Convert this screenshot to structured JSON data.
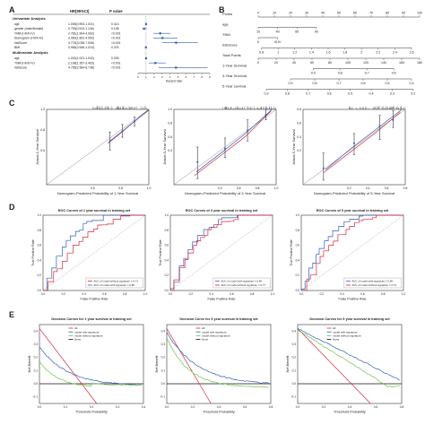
{
  "panels": {
    "A": "A",
    "B": "B",
    "C": "C",
    "D": "D",
    "E": "E"
  },
  "panelA": {
    "header": {
      "hr": "HR(95%CI)",
      "p": "P value"
    },
    "uni_title": "Univariate Analysis",
    "uni_rows": [
      {
        "label": "age",
        "hr": "1.005(0.993-1.021)",
        "p": "0.413"
      },
      {
        "label": "gender (male/female)",
        "hr": "0.753(0.513-1.106)",
        "p": "0.148"
      },
      {
        "label": "TNM (I-III/II-IV)",
        "hr": "2.781(1.904-4.062)",
        "p": "<0.001"
      },
      {
        "label": "Nomogram (I-III/II-IV)",
        "hr": "3.060(1.891-4.950)",
        "p": "<0.001"
      },
      {
        "label": "riskScore",
        "hr": "4.776(3.038-7.508)",
        "p": "<0.001"
      },
      {
        "label": "BMI",
        "hr": "0.984(0.946-1.024)",
        "p": "0.376"
      }
    ],
    "multi_title": "Multivariate Analysis",
    "multi_rows": [
      {
        "label": "age",
        "hr": "1.002(1.001-1.042)",
        "p": "0.039"
      },
      {
        "label": "TNM (I-III/II-IV)",
        "hr": "2.168(1.357-3.463)",
        "p": "<0.001"
      },
      {
        "label": "riskScore",
        "hr": "4.755(2.584-8.738)",
        "p": "<0.001"
      }
    ],
    "axis_ticks": [
      "0",
      "1",
      "2",
      "3",
      "4",
      "5",
      "6",
      "7",
      "8",
      "9"
    ],
    "xlabel": "Hazard ratio"
  },
  "panelB": {
    "rows": [
      {
        "label": "Points",
        "ticks": [
          "0",
          "10",
          "20",
          "30",
          "40",
          "50",
          "60",
          "70",
          "80",
          "90",
          "100"
        ]
      },
      {
        "label": "age",
        "ticks": [
          "15",
          "40",
          "65",
          "90"
        ]
      },
      {
        "label": "TNM",
        "ticks": [
          "II",
          "III-IV"
        ]
      },
      {
        "label": "riskScore",
        "ticks": [
          "0.8",
          "1",
          "1.2",
          "1.4",
          "1.6",
          "1.8",
          "2",
          "2.2",
          "2.4",
          "2.6"
        ]
      },
      {
        "label": "Total Points",
        "ticks": [
          "0",
          "20",
          "40",
          "60",
          "80",
          "100",
          "120",
          "140",
          "160",
          "180"
        ]
      },
      {
        "label": "1-Year Survival",
        "ticks": [
          "0.9",
          "0.8",
          "0.7",
          "0.6"
        ]
      },
      {
        "label": "3-Year Survival",
        "ticks": [
          "0.9",
          "0.8",
          "0.7",
          "0.6",
          "0.5",
          "0.4"
        ]
      },
      {
        "label": "5-Year survival",
        "ticks": [
          "0.9",
          "0.8",
          "0.7",
          "0.6",
          "0.5",
          "0.4",
          "0.3",
          "0.2"
        ]
      }
    ]
  },
  "panelC": [
    {
      "ylabel": "Actual 1-Year Survival",
      "xlabel": "Nomogram-Predicted Probability of 1-Year Survival",
      "xticks": [
        "0.6",
        "0.8",
        "1.0"
      ],
      "yticks": [
        "0.6",
        "0.8",
        "1.0"
      ]
    },
    {
      "ylabel": "Actual 3-Year Survival",
      "xlabel": "Nomogram-Predicted Probability of 3-Year Survival",
      "xticks": [
        "0.4",
        "0.6",
        "0.8",
        "1.0"
      ],
      "yticks": [
        "0.4",
        "0.6",
        "0.8",
        "1.0"
      ]
    },
    {
      "ylabel": "Actual 5-Year Survival",
      "xlabel": "Nomogram-Predicted Probability of 5-Year Survival",
      "xticks": [
        "0.2",
        "0.4",
        "0.6",
        "0.8"
      ],
      "yticks": [
        "0.2",
        "0.4",
        "0.6",
        "0.8"
      ]
    }
  ],
  "panelD": [
    {
      "title": "ROC Curves of 1 year survival in training set",
      "xlabel": "False Positive Rate",
      "ylabel": "True Positive Rate",
      "legend": [
        "AUC of model without signature = 0.71",
        "AUC of model with signature = 0.80"
      ]
    },
    {
      "title": "ROC Curves of 3 year survival in training set",
      "xlabel": "False Positive Rate",
      "ylabel": "True Positive Rate",
      "legend": [
        "AUC of model with signature = 0.80",
        "AUC of model without signature = 0.77"
      ]
    },
    {
      "title": "ROC Curves of 5 year survival in training set",
      "xlabel": "False Positive Rate",
      "ylabel": "True Positive Rate",
      "legend": [
        "AUC of model with signature = 0.80",
        "AUC of model without signature = 0.74"
      ]
    }
  ],
  "panelE": [
    {
      "title": "Decision Curves for 1 year survival in training set",
      "xlabel": "Threshold Probability",
      "ylabel": "Net Benefit",
      "legend": [
        "All",
        "model with signature",
        "model without signature",
        "None"
      ]
    },
    {
      "title": "Decision Curve for 3 year survival in training set",
      "xlabel": "Threshold Probability",
      "ylabel": "Net Benefit",
      "legend": [
        "All",
        "model with signature",
        "model without signature",
        "None"
      ]
    },
    {
      "title": "Decision Curves for 5 year survival in training set",
      "xlabel": "Threshold Probability",
      "ylabel": "Net Benefit",
      "legend": [
        "All",
        "model with signature",
        "model without signature",
        "None"
      ]
    }
  ],
  "colors": {
    "red": "#d9263a",
    "blue": "#2f5fb8",
    "green": "#6cc24a",
    "black": "#111111",
    "gray": "#888888"
  }
}
